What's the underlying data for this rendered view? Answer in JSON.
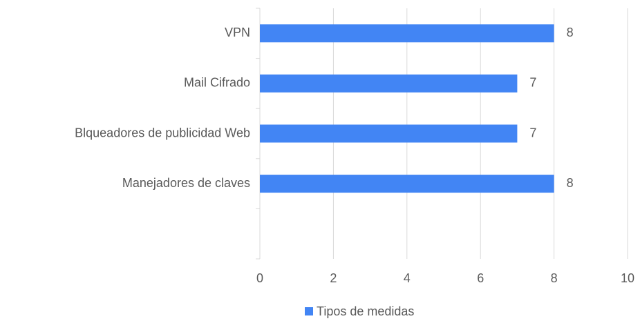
{
  "chart_data": {
    "type": "bar",
    "orientation": "horizontal",
    "categories": [
      "VPN",
      "Mail Cifrado",
      "Blqueadores de publicidad Web",
      "Manejadores de claves",
      null
    ],
    "series": [
      {
        "name": "Tipos de medidas",
        "color": "#4285f4",
        "values": [
          8,
          7,
          7,
          8,
          null
        ]
      }
    ],
    "xlim": [
      0,
      10
    ],
    "xticks": [
      0,
      2,
      4,
      6,
      8,
      10
    ],
    "grid": true,
    "legend": "bottom"
  }
}
